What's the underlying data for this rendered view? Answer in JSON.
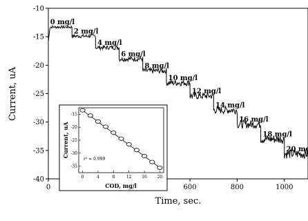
{
  "chart_data": [
    {
      "type": "line",
      "role": "main",
      "xlabel": "Time, sec.",
      "ylabel": "Current, uA",
      "xlim": [
        0,
        1100
      ],
      "ylim": [
        -40,
        -10
      ],
      "xticks": [
        0,
        200,
        400,
        600,
        800,
        1000
      ],
      "yticks": [
        -40,
        -35,
        -30,
        -25,
        -20,
        -15,
        -10
      ],
      "x_tick_labels": [
        "0",
        "200",
        "400",
        "600",
        "800",
        "1000"
      ],
      "y_tick_labels": [
        "-40",
        "-35",
        "-30",
        "-25",
        "-20",
        "-15",
        "-10"
      ],
      "line_color": "#000000",
      "grid": false,
      "steps": [
        {
          "label": "0 mg/l",
          "x_start": 0,
          "x_end": 100,
          "y": -13.3
        },
        {
          "label": "2 mg/l",
          "x_start": 100,
          "x_end": 200,
          "y": -14.9
        },
        {
          "label": "4 mg/l",
          "x_start": 200,
          "x_end": 300,
          "y": -16.9
        },
        {
          "label": "6 mg/l",
          "x_start": 300,
          "x_end": 400,
          "y": -18.9
        },
        {
          "label": "8 mg/l",
          "x_start": 400,
          "x_end": 500,
          "y": -21.0
        },
        {
          "label": "10 mg/l",
          "x_start": 500,
          "x_end": 600,
          "y": -23.1
        },
        {
          "label": "12 mg/l",
          "x_start": 600,
          "x_end": 700,
          "y": -25.4
        },
        {
          "label": "14 mg/l",
          "x_start": 700,
          "x_end": 800,
          "y": -27.9
        },
        {
          "label": "16 mg/l",
          "x_start": 800,
          "x_end": 900,
          "y": -30.4
        },
        {
          "label": "18 mg/l",
          "x_start": 900,
          "x_end": 1000,
          "y": -33.0
        },
        {
          "label": "20 mg/l",
          "x_start": 1000,
          "x_end": 1100,
          "y": -35.6
        }
      ]
    },
    {
      "type": "scatter",
      "role": "inset",
      "xlabel": "COD, mg/l",
      "ylabel": "Current, uA",
      "xlim": [
        -1,
        21
      ],
      "ylim": [
        -37.5,
        -12.5
      ],
      "xticks": [
        0,
        4,
        8,
        12,
        16,
        20
      ],
      "yticks": [
        -35,
        -30,
        -25,
        -20,
        -15
      ],
      "x_tick_labels": [
        "0",
        "4",
        "8",
        "12",
        "16",
        "20"
      ],
      "y_tick_labels": [
        "-35",
        "-30",
        "-25",
        "-20",
        "-15"
      ],
      "x": [
        0,
        2,
        4,
        6,
        8,
        10,
        12,
        14,
        16,
        18,
        20
      ],
      "y": [
        -13.5,
        -15.5,
        -17.8,
        -19.8,
        -22.1,
        -24.4,
        -26.6,
        -28.8,
        -31.1,
        -33.4,
        -35.6
      ],
      "fit_line": {
        "x": [
          0,
          20
        ],
        "y": [
          -13.5,
          -35.6
        ]
      },
      "annotation": "r² = 0.999"
    }
  ]
}
